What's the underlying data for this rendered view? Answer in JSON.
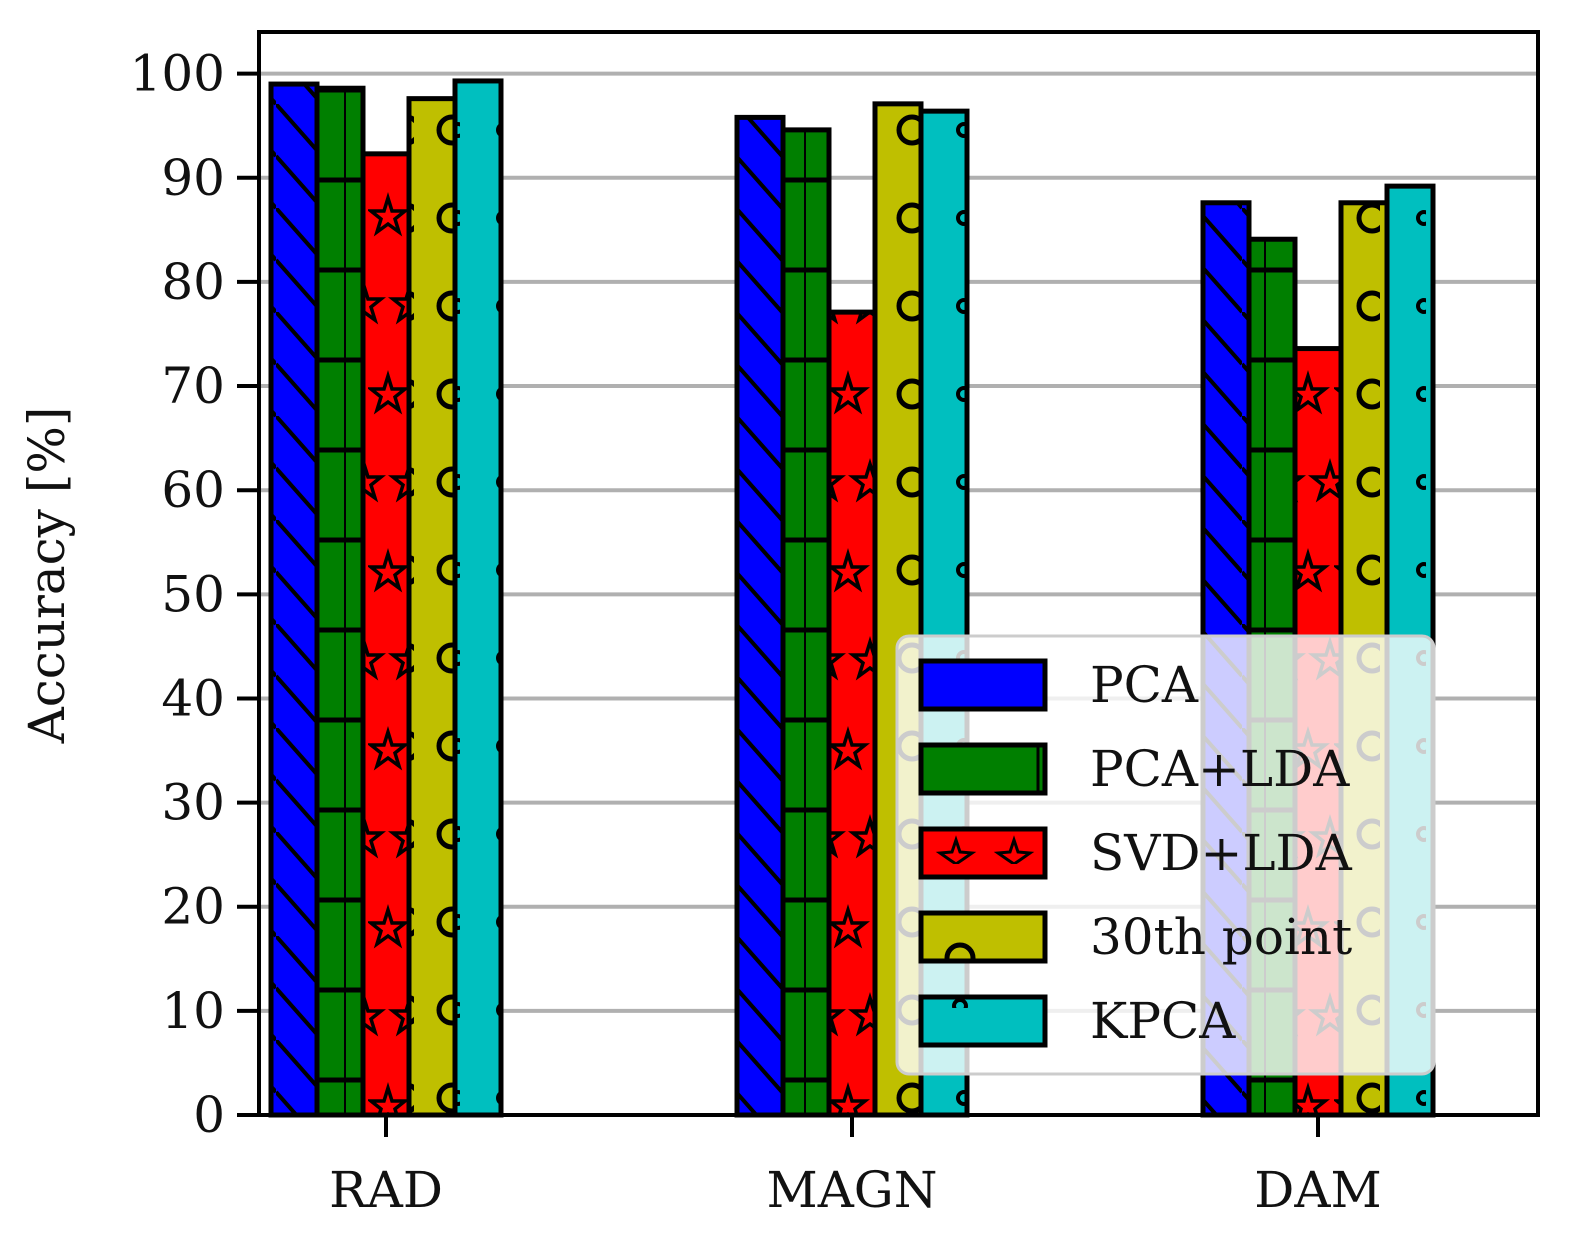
{
  "chart_data": {
    "type": "bar",
    "title": "",
    "xlabel": "",
    "ylabel": "Accuracy [%]",
    "categories": [
      "RAD",
      "MAGN",
      "DAM"
    ],
    "ylim": [
      0,
      104
    ],
    "yticks": [
      0,
      10,
      20,
      30,
      40,
      50,
      60,
      70,
      80,
      90,
      100
    ],
    "grid": "horizontal",
    "legend_position": "lower-right",
    "series": [
      {
        "name": "PCA",
        "color": "#0000ff",
        "hatch": "diagonal",
        "values": [
          99.0,
          95.8,
          87.6
        ]
      },
      {
        "name": "PCA+LDA",
        "color": "#007f00",
        "hatch": "grid",
        "values": [
          98.6,
          94.6,
          84.1
        ]
      },
      {
        "name": "SVD+LDA",
        "color": "#ff0000",
        "hatch": "stars",
        "values": [
          92.3,
          77.1,
          73.6
        ]
      },
      {
        "name": "30th point",
        "color": "#bfbf00",
        "hatch": "circles",
        "values": [
          97.6,
          97.1,
          87.6
        ]
      },
      {
        "name": "KPCA",
        "color": "#00bfbf",
        "hatch": "dots",
        "values": [
          99.3,
          96.4,
          89.2
        ]
      }
    ]
  }
}
